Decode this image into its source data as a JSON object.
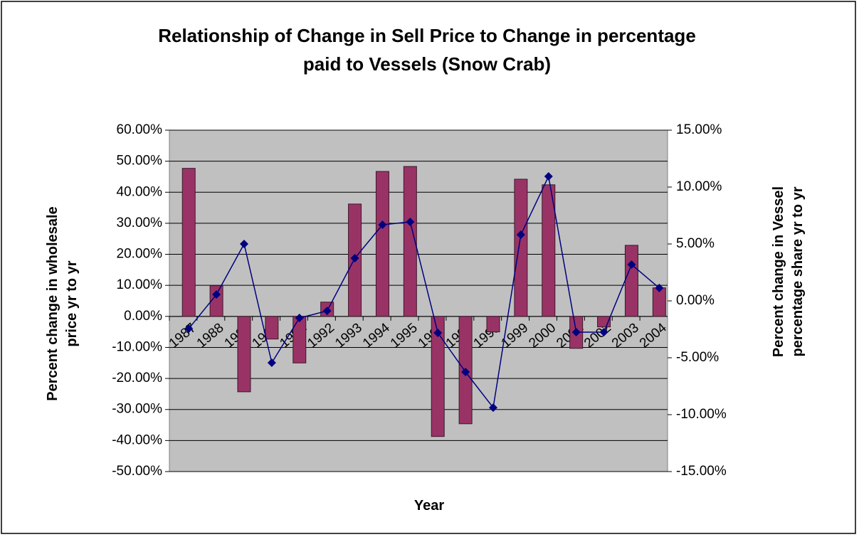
{
  "chart_data": {
    "type": "combo",
    "title": "Relationship of Change in Sell Price to Change in percentage paid to Vessels (Snow Crab)",
    "x_label": "Year",
    "y_label": "Percent change in wholesale price yr to yr",
    "y2_label": "Percent change in Vessel percentage share yr to yr",
    "categories": [
      "1987",
      "1988",
      "1989",
      "1990",
      "1991",
      "1992",
      "1993",
      "1994",
      "1995",
      "1996",
      "1997",
      "1998",
      "1999",
      "2000",
      "2001",
      "2002",
      "2003",
      "2004"
    ],
    "series": [
      {
        "type": "bar",
        "color": "#993366",
        "values": [
          47.7,
          9.9,
          -24.3,
          -7.3,
          -15,
          4.6,
          36.2,
          46.7,
          48.3,
          -38.7,
          -34.6,
          -5,
          44.2,
          42.4,
          -10.3,
          -3.4,
          22.9,
          9.2
        ]
      },
      {
        "type": "line",
        "axis": "y2",
        "color": "#000080",
        "values": [
          -2.44,
          0.56,
          5.0,
          -5.44,
          -1.5,
          -0.88,
          3.75,
          6.69,
          6.94,
          -2.81,
          -6.25,
          -9.38,
          5.81,
          10.94,
          -2.75,
          -2.75,
          3.19,
          1.13
        ]
      }
    ],
    "ylim": [
      -50,
      60
    ],
    "yticks": [
      {
        "value": -50,
        "label": "-50.00%"
      },
      {
        "value": -40,
        "label": "-40.00%"
      },
      {
        "value": -30,
        "label": "-30.00%"
      },
      {
        "value": -20,
        "label": "-20.00%"
      },
      {
        "value": -10,
        "label": "-10.00%"
      },
      {
        "value": 0,
        "label": "0.00%"
      },
      {
        "value": 10,
        "label": "10.00%"
      },
      {
        "value": 20,
        "label": "20.00%"
      },
      {
        "value": 30,
        "label": "30.00%"
      },
      {
        "value": 40,
        "label": "40.00%"
      },
      {
        "value": 50,
        "label": "50.00%"
      },
      {
        "value": 60,
        "label": "60.00%"
      }
    ],
    "y2lim": [
      -15,
      15
    ],
    "y2ticks": [
      {
        "value": -15,
        "label": "-15.00%"
      },
      {
        "value": -10,
        "label": "-10.00%"
      },
      {
        "value": -5,
        "label": "-5.00%"
      },
      {
        "value": 0,
        "label": "0.00%"
      },
      {
        "value": 5,
        "label": "5.00%"
      },
      {
        "value": 10,
        "label": "10.00%"
      },
      {
        "value": 15,
        "label": "15.00%"
      }
    ],
    "grid": true
  }
}
